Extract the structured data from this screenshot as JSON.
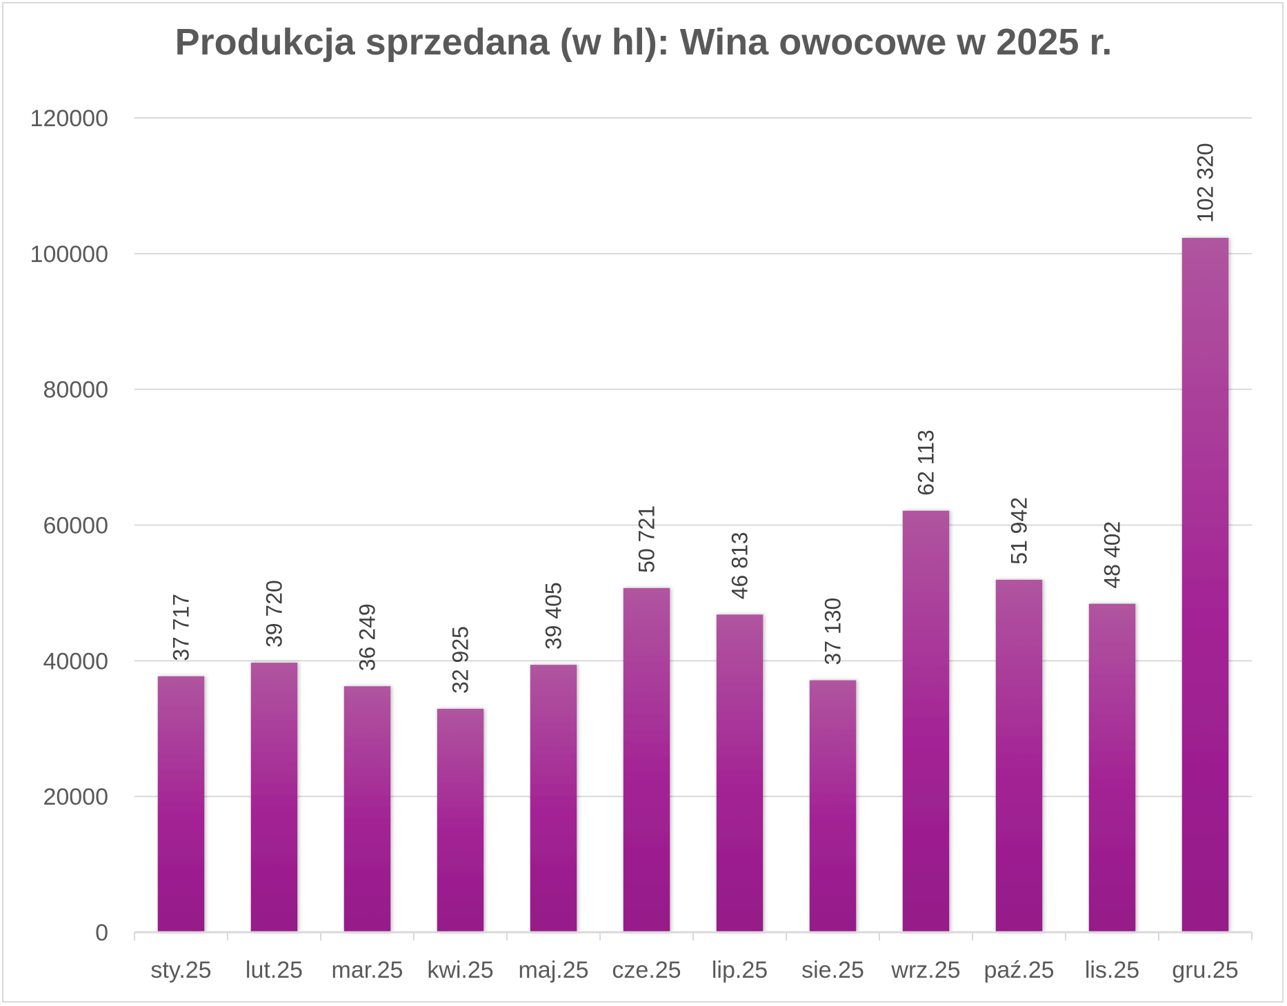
{
  "chart_data": {
    "type": "bar",
    "title": "Produkcja sprzedana (w hl): Wina owocowe w 2025 r.",
    "categories": [
      "sty.25",
      "lut.25",
      "mar.25",
      "kwi.25",
      "maj.25",
      "cze.25",
      "lip.25",
      "sie.25",
      "wrz.25",
      "paź.25",
      "lis.25",
      "gru.25"
    ],
    "values": [
      37717,
      39720,
      36249,
      32925,
      39405,
      50721,
      46813,
      37130,
      62113,
      51942,
      48402,
      102320
    ],
    "data_labels": [
      "37 717",
      "39 720",
      "36 249",
      "32 925",
      "39 405",
      "50 721",
      "46 813",
      "37 130",
      "62 113",
      "51 942",
      "48 402",
      "102 320"
    ],
    "y_ticks": [
      "0",
      "20000",
      "40000",
      "60000",
      "80000",
      "100000",
      "120000"
    ],
    "ylim": [
      0,
      120000
    ],
    "grid": true,
    "legend": "none",
    "colors": {
      "bar_top": "#b0559f",
      "bar_mid": "#a32395",
      "bar_bottom": "#951a89",
      "grid": "#d9d9d9",
      "text": "#595959"
    }
  }
}
